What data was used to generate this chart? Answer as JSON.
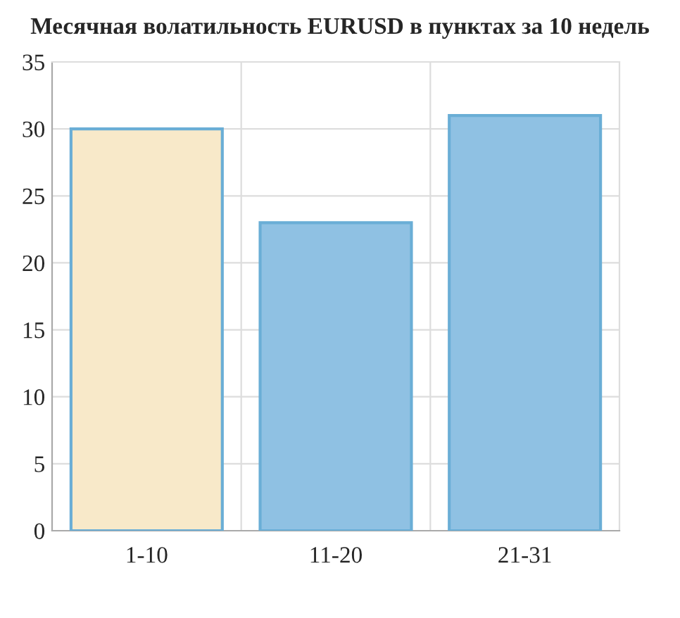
{
  "chart_data": {
    "type": "bar",
    "title": "Месячная волатильность EURUSD в пунктах за 10 недель",
    "categories": [
      "1-10",
      "11-20",
      "21-31"
    ],
    "values": [
      30,
      23,
      31
    ],
    "colors": [
      "#f8e9c9",
      "#8fc1e3",
      "#8fc1e3"
    ],
    "ylim": [
      0,
      35
    ],
    "yticks": [
      0,
      5,
      10,
      15,
      20,
      25,
      30,
      35
    ],
    "grid": true
  }
}
